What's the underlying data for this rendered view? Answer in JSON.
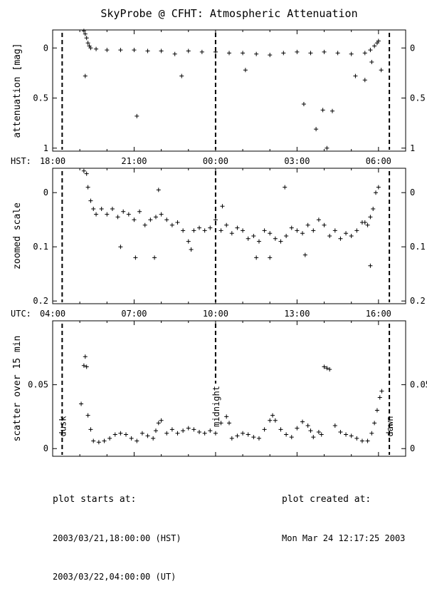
{
  "chart_data": {
    "type": "scatter",
    "title": "SkyProbe @ CFHT: Atmospheric Attenuation",
    "x_axis": {
      "unit": "hours",
      "range_hst": [
        18.0,
        7.0
      ],
      "hst_label": "HST:",
      "utc_label": "UTC:",
      "hst_ticks": [
        {
          "t": 18,
          "label": "18:00"
        },
        {
          "t": 21,
          "label": "21:00"
        },
        {
          "t": 24,
          "label": "00:00"
        },
        {
          "t": 27,
          "label": "03:00"
        },
        {
          "t": 30,
          "label": "06:00"
        }
      ],
      "utc_ticks": [
        {
          "t": 18,
          "label": "04:00"
        },
        {
          "t": 21,
          "label": "07:00"
        },
        {
          "t": 24,
          "label": "10:00"
        },
        {
          "t": 27,
          "label": "13:00"
        },
        {
          "t": 30,
          "label": "16:00"
        }
      ]
    },
    "markers": [
      {
        "t": 18.35,
        "label": "dusk"
      },
      {
        "t": 24.0,
        "label": "midnight"
      },
      {
        "t": 30.4,
        "label": "dawn"
      }
    ],
    "panels": [
      {
        "id": "attenuation",
        "ylabel": "attenuation [mag]",
        "ylim": [
          -0.18,
          1.03
        ],
        "inverted": true,
        "yticks": [
          {
            "v": 0,
            "label": "0"
          },
          {
            "v": 0.5,
            "label": "0.5"
          },
          {
            "v": 1,
            "label": "1"
          }
        ],
        "points": [
          [
            19.15,
            -0.17
          ],
          [
            19.2,
            -0.14
          ],
          [
            19.25,
            -0.1
          ],
          [
            19.3,
            -0.05
          ],
          [
            19.35,
            -0.02
          ],
          [
            19.4,
            0.0
          ],
          [
            19.6,
            0.01
          ],
          [
            20.0,
            0.02
          ],
          [
            20.5,
            0.02
          ],
          [
            21.0,
            0.02
          ],
          [
            21.5,
            0.03
          ],
          [
            22.0,
            0.03
          ],
          [
            22.5,
            0.06
          ],
          [
            23.0,
            0.03
          ],
          [
            23.5,
            0.04
          ],
          [
            24.0,
            0.04
          ],
          [
            24.5,
            0.05
          ],
          [
            25.0,
            0.05
          ],
          [
            25.5,
            0.06
          ],
          [
            26.0,
            0.07
          ],
          [
            26.5,
            0.05
          ],
          [
            27.0,
            0.04
          ],
          [
            27.5,
            0.05
          ],
          [
            28.0,
            0.04
          ],
          [
            28.5,
            0.05
          ],
          [
            29.0,
            0.06
          ],
          [
            29.5,
            0.05
          ],
          [
            29.7,
            0.02
          ],
          [
            29.85,
            -0.02
          ],
          [
            29.95,
            -0.05
          ],
          [
            30.0,
            -0.07
          ],
          [
            19.2,
            0.28
          ],
          [
            21.1,
            0.68
          ],
          [
            22.75,
            0.28
          ],
          [
            25.1,
            0.22
          ],
          [
            27.25,
            0.56
          ],
          [
            27.7,
            0.81
          ],
          [
            27.95,
            0.62
          ],
          [
            28.1,
            1.0
          ],
          [
            28.3,
            0.63
          ],
          [
            29.15,
            0.28
          ],
          [
            29.5,
            0.32
          ],
          [
            29.75,
            0.14
          ],
          [
            30.1,
            0.22
          ]
        ]
      },
      {
        "id": "zoomed",
        "ylabel": "zoomed scale",
        "ylim": [
          -0.045,
          0.205
        ],
        "inverted": true,
        "yticks": [
          {
            "v": 0,
            "label": "0"
          },
          {
            "v": 0.1,
            "label": "0.1"
          },
          {
            "v": 0.2,
            "label": "0.2"
          }
        ],
        "points": [
          [
            19.15,
            -0.04
          ],
          [
            19.25,
            -0.035
          ],
          [
            19.3,
            -0.01
          ],
          [
            19.4,
            0.015
          ],
          [
            19.5,
            0.03
          ],
          [
            19.6,
            0.04
          ],
          [
            19.8,
            0.03
          ],
          [
            20.0,
            0.04
          ],
          [
            20.2,
            0.03
          ],
          [
            20.4,
            0.045
          ],
          [
            20.6,
            0.035
          ],
          [
            20.8,
            0.04
          ],
          [
            21.0,
            0.05
          ],
          [
            21.2,
            0.035
          ],
          [
            21.4,
            0.06
          ],
          [
            21.6,
            0.05
          ],
          [
            21.8,
            0.045
          ],
          [
            22.0,
            0.04
          ],
          [
            22.2,
            0.05
          ],
          [
            22.4,
            0.06
          ],
          [
            22.6,
            0.055
          ],
          [
            22.8,
            0.07
          ],
          [
            23.0,
            0.09
          ],
          [
            23.2,
            0.07
          ],
          [
            23.4,
            0.065
          ],
          [
            23.6,
            0.07
          ],
          [
            23.8,
            0.065
          ],
          [
            24.0,
            0.05
          ],
          [
            24.2,
            0.07
          ],
          [
            24.4,
            0.06
          ],
          [
            24.6,
            0.075
          ],
          [
            24.8,
            0.065
          ],
          [
            25.0,
            0.07
          ],
          [
            25.2,
            0.085
          ],
          [
            25.4,
            0.08
          ],
          [
            25.6,
            0.09
          ],
          [
            25.8,
            0.07
          ],
          [
            26.0,
            0.075
          ],
          [
            26.2,
            0.085
          ],
          [
            26.4,
            0.09
          ],
          [
            26.6,
            0.08
          ],
          [
            26.8,
            0.065
          ],
          [
            27.0,
            0.07
          ],
          [
            27.2,
            0.075
          ],
          [
            27.4,
            0.06
          ],
          [
            27.6,
            0.07
          ],
          [
            27.8,
            0.05
          ],
          [
            28.0,
            0.06
          ],
          [
            28.2,
            0.08
          ],
          [
            28.4,
            0.07
          ],
          [
            28.6,
            0.085
          ],
          [
            28.8,
            0.075
          ],
          [
            29.0,
            0.08
          ],
          [
            29.2,
            0.07
          ],
          [
            29.4,
            0.055
          ],
          [
            29.5,
            0.055
          ],
          [
            29.6,
            0.06
          ],
          [
            29.7,
            0.045
          ],
          [
            29.8,
            0.03
          ],
          [
            29.9,
            0.0
          ],
          [
            30.0,
            -0.01
          ],
          [
            20.5,
            0.1
          ],
          [
            21.05,
            0.12
          ],
          [
            21.75,
            0.12
          ],
          [
            21.9,
            -0.005
          ],
          [
            23.1,
            0.105
          ],
          [
            24.25,
            0.025
          ],
          [
            25.5,
            0.12
          ],
          [
            26.0,
            0.12
          ],
          [
            26.55,
            -0.01
          ],
          [
            27.3,
            0.115
          ],
          [
            29.7,
            0.135
          ]
        ]
      },
      {
        "id": "scatter",
        "ylabel": "scatter over 15 min",
        "ylim": [
          -0.006,
          0.1
        ],
        "inverted": false,
        "yticks": [
          {
            "v": 0,
            "label": "0"
          },
          {
            "v": 0.05,
            "label": "0.05"
          }
        ],
        "points": [
          [
            19.05,
            0.035
          ],
          [
            19.15,
            0.065
          ],
          [
            19.2,
            0.072
          ],
          [
            19.25,
            0.064
          ],
          [
            19.3,
            0.026
          ],
          [
            19.4,
            0.015
          ],
          [
            19.5,
            0.006
          ],
          [
            19.7,
            0.005
          ],
          [
            19.9,
            0.006
          ],
          [
            20.1,
            0.008
          ],
          [
            20.3,
            0.011
          ],
          [
            20.5,
            0.012
          ],
          [
            20.7,
            0.011
          ],
          [
            20.9,
            0.008
          ],
          [
            21.1,
            0.006
          ],
          [
            21.3,
            0.012
          ],
          [
            21.5,
            0.01
          ],
          [
            21.7,
            0.008
          ],
          [
            21.8,
            0.014
          ],
          [
            21.9,
            0.02
          ],
          [
            22.0,
            0.022
          ],
          [
            22.2,
            0.012
          ],
          [
            22.4,
            0.015
          ],
          [
            22.6,
            0.012
          ],
          [
            22.8,
            0.014
          ],
          [
            23.0,
            0.016
          ],
          [
            23.2,
            0.015
          ],
          [
            23.4,
            0.013
          ],
          [
            23.6,
            0.012
          ],
          [
            23.8,
            0.014
          ],
          [
            24.0,
            0.012
          ],
          [
            24.2,
            0.02
          ],
          [
            24.4,
            0.025
          ],
          [
            24.5,
            0.02
          ],
          [
            24.6,
            0.008
          ],
          [
            24.8,
            0.01
          ],
          [
            25.0,
            0.012
          ],
          [
            25.2,
            0.011
          ],
          [
            25.4,
            0.009
          ],
          [
            25.6,
            0.008
          ],
          [
            25.8,
            0.015
          ],
          [
            26.0,
            0.022
          ],
          [
            26.1,
            0.026
          ],
          [
            26.2,
            0.022
          ],
          [
            26.4,
            0.015
          ],
          [
            26.6,
            0.011
          ],
          [
            26.8,
            0.009
          ],
          [
            27.0,
            0.016
          ],
          [
            27.2,
            0.021
          ],
          [
            27.4,
            0.018
          ],
          [
            27.5,
            0.014
          ],
          [
            27.6,
            0.009
          ],
          [
            27.8,
            0.013
          ],
          [
            27.9,
            0.011
          ],
          [
            28.0,
            0.064
          ],
          [
            28.1,
            0.063
          ],
          [
            28.2,
            0.062
          ],
          [
            28.4,
            0.018
          ],
          [
            28.6,
            0.013
          ],
          [
            28.8,
            0.011
          ],
          [
            29.0,
            0.01
          ],
          [
            29.2,
            0.008
          ],
          [
            29.4,
            0.006
          ],
          [
            29.6,
            0.006
          ],
          [
            29.75,
            0.012
          ],
          [
            29.85,
            0.02
          ],
          [
            29.95,
            0.03
          ],
          [
            30.05,
            0.04
          ],
          [
            30.12,
            0.045
          ]
        ]
      }
    ]
  },
  "footer": {
    "left_header": "plot starts at:",
    "left_line1": "2003/03/21,18:00:00 (HST)",
    "left_line2": "2003/03/22,04:00:00 (UT)",
    "right_header": "plot created at:",
    "right_line1": "Mon Mar 24 12:17:25 2003"
  }
}
